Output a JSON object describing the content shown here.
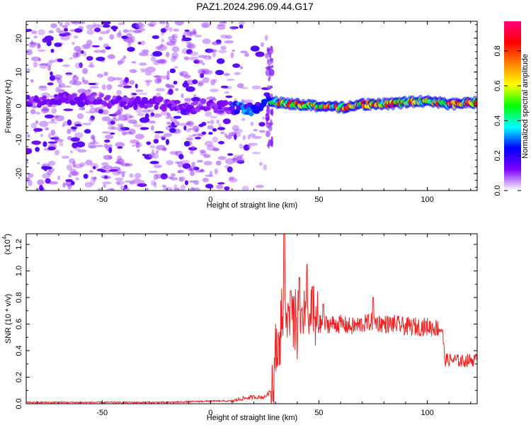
{
  "title": "PAZ1.2024.296.09.44.G17",
  "chart_data": [
    {
      "type": "heatmap",
      "xlabel": "Height of straight line (km)",
      "ylabel": "Frequency (Hz)",
      "xlim": [
        -85,
        123
      ],
      "ylim": [
        -25,
        25
      ],
      "x_ticks": [
        -50,
        0,
        50,
        100
      ],
      "y_ticks": [
        -20,
        -10,
        0,
        10,
        20
      ],
      "grid": false,
      "colorbar": {
        "label": "Normalized spectral amplitude",
        "range": [
          0.0,
          0.97
        ],
        "ticks": [
          0.0,
          0.2,
          0.4,
          0.6,
          0.8
        ],
        "tick_labels": [
          "0.0",
          "0.2",
          "0.4",
          "0.6",
          "0.8"
        ],
        "colors": [
          "#ffffff",
          "#7d00ff",
          "#0000ff",
          "#00ffff",
          "#00ff00",
          "#ffff00",
          "#ff8000",
          "#ff0000",
          "#ff0080"
        ]
      },
      "ridge": {
        "x": [
          -80,
          -60,
          -40,
          -20,
          0,
          10,
          20,
          26,
          30,
          40,
          50,
          60,
          70,
          80,
          90,
          100,
          110,
          120
        ],
        "frequency_hz": [
          1.5,
          2.5,
          1.0,
          0.5,
          0.0,
          -0.5,
          -1.0,
          2.0,
          1.0,
          0.5,
          0.0,
          -0.5,
          0.5,
          0.5,
          1.0,
          1.5,
          0.5,
          1.0
        ]
      }
    },
    {
      "type": "line",
      "xlabel": "Height of straight line (km)",
      "ylabel": "SNR (10 * v/v)",
      "scale_label": "(x10",
      "scale_exponent": "4",
      "xlim": [
        -85,
        123
      ],
      "ylim": [
        0,
        1.28
      ],
      "x_ticks": [
        -50,
        0,
        50,
        100
      ],
      "y_ticks": [
        0.0,
        0.2,
        0.4,
        0.6,
        0.8,
        1.0,
        1.2
      ],
      "y_tick_labels": [
        "0.0",
        "0.2",
        "0.4",
        "0.6",
        "0.8",
        "1.0",
        "1.2"
      ],
      "grid": false,
      "series": [
        {
          "color": "#ee2222",
          "x": [
            -85,
            -60,
            -40,
            -20,
            0,
            10,
            15,
            20,
            25,
            28,
            30,
            32,
            34,
            36,
            38,
            40,
            42,
            44,
            46,
            48,
            50,
            55,
            60,
            65,
            70,
            75,
            80,
            85,
            90,
            95,
            100,
            105,
            107,
            108,
            112,
            116,
            120,
            123
          ],
          "values": [
            0.01,
            0.01,
            0.01,
            0.01,
            0.02,
            0.02,
            0.04,
            0.05,
            0.05,
            0.1,
            0.35,
            0.55,
            0.7,
            0.65,
            0.6,
            0.58,
            0.62,
            0.6,
            0.65,
            0.62,
            0.6,
            0.6,
            0.6,
            0.58,
            0.6,
            0.62,
            0.6,
            0.6,
            0.58,
            0.58,
            0.58,
            0.57,
            0.56,
            0.33,
            0.33,
            0.32,
            0.33,
            0.33
          ],
          "peaks": [
            [
              34,
              1.3
            ],
            [
              37,
              0.85
            ],
            [
              41,
              0.95
            ],
            [
              44.5,
              1.05
            ],
            [
              47,
              0.88
            ],
            [
              52,
              0.75
            ],
            [
              75,
              0.8
            ]
          ]
        }
      ]
    }
  ]
}
